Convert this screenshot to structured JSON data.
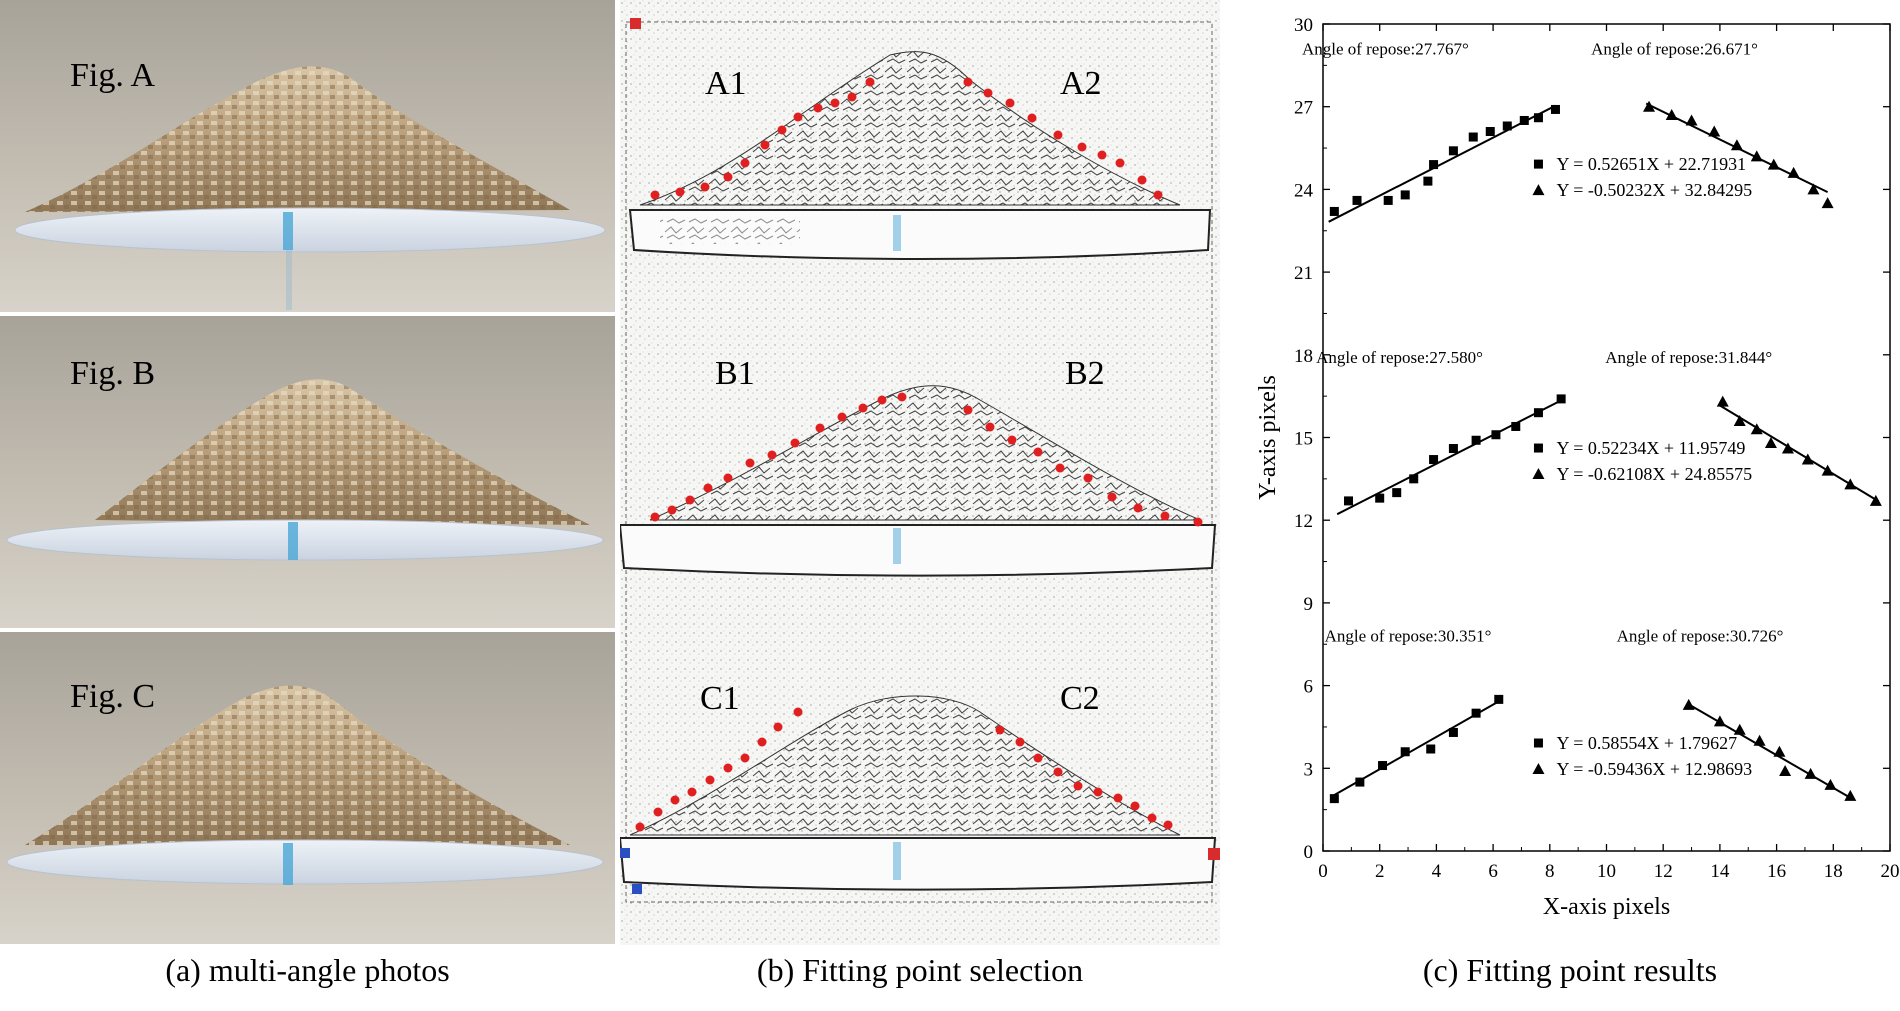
{
  "panel_a": {
    "labels": [
      "Fig. A",
      "Fig. B",
      "Fig. C"
    ],
    "caption": "(a) multi-angle photos"
  },
  "panel_b": {
    "labels": [
      [
        "A1",
        "A2"
      ],
      [
        "B1",
        "B2"
      ],
      [
        "C1",
        "C2"
      ]
    ],
    "caption": "(b) Fitting point selection"
  },
  "panel_c": {
    "caption": "(c) Fitting point results"
  },
  "colors": {
    "point": "#e02020",
    "marker_red": "#d92b2b",
    "marker_blue": "#2a4fc2",
    "tray_blue": "#4aa6d6"
  },
  "chart_data": {
    "type": "scatter",
    "xlabel": "X-axis pixels",
    "ylabel": "Y-axis pixels",
    "xlim": [
      0,
      20
    ],
    "ylim": [
      0,
      30
    ],
    "xticks": [
      0,
      2,
      4,
      6,
      8,
      10,
      12,
      14,
      16,
      18,
      20
    ],
    "yticks": [
      0,
      3,
      6,
      9,
      12,
      15,
      18,
      21,
      24,
      27,
      30
    ],
    "groups": [
      {
        "left": {
          "angle_label": "Angle of repose:27.767°",
          "marker": "square",
          "equation": "Y = 0.52651X + 22.71931",
          "slope": 0.52651,
          "intercept": 22.71931,
          "fit_x": [
            0.2,
            8.2
          ],
          "x": [
            0.4,
            1.2,
            2.3,
            2.9,
            3.7,
            3.9,
            4.6,
            5.3,
            5.9,
            6.5,
            7.1,
            7.6,
            8.2
          ],
          "y": [
            23.2,
            23.6,
            23.6,
            23.8,
            24.3,
            24.9,
            25.4,
            25.9,
            26.1,
            26.3,
            26.5,
            26.6,
            26.9
          ]
        },
        "right": {
          "angle_label": "Angle of repose:26.671°",
          "marker": "triangle",
          "equation": "Y = -0.50232X + 32.84295",
          "slope": -0.50232,
          "intercept": 32.84295,
          "fit_x": [
            11.4,
            17.8
          ],
          "x": [
            11.5,
            12.3,
            13.0,
            13.8,
            14.6,
            15.3,
            15.9,
            16.6,
            17.3,
            17.8
          ],
          "y": [
            27.0,
            26.7,
            26.5,
            26.1,
            25.6,
            25.2,
            24.9,
            24.6,
            24.0,
            23.5
          ]
        }
      },
      {
        "left": {
          "angle_label": "Angle of repose:27.580°",
          "marker": "square",
          "equation": "Y = 0.52234X + 11.95749",
          "slope": 0.52234,
          "intercept": 11.95749,
          "fit_x": [
            0.5,
            8.5
          ],
          "x": [
            0.9,
            2.0,
            2.6,
            3.2,
            3.9,
            4.6,
            5.4,
            6.1,
            6.8,
            7.6,
            8.4
          ],
          "y": [
            12.7,
            12.8,
            13.0,
            13.5,
            14.2,
            14.6,
            14.9,
            15.1,
            15.4,
            15.9,
            16.4
          ]
        },
        "right": {
          "angle_label": "Angle of repose:31.844°",
          "marker": "triangle",
          "equation": "Y = -0.62108X + 24.85575",
          "slope": -0.62108,
          "intercept": 24.85575,
          "fit_x": [
            14.0,
            19.6
          ],
          "x": [
            14.1,
            14.7,
            15.3,
            15.8,
            16.4,
            17.1,
            17.8,
            18.6,
            19.5
          ],
          "y": [
            16.3,
            15.6,
            15.3,
            14.8,
            14.6,
            14.2,
            13.8,
            13.3,
            12.7
          ]
        }
      },
      {
        "left": {
          "angle_label": "Angle of repose:30.351°",
          "marker": "square",
          "equation": "Y = 0.58554X + 1.79627",
          "slope": 0.58554,
          "intercept": 1.79627,
          "fit_x": [
            0.3,
            6.3
          ],
          "x": [
            0.4,
            1.3,
            2.1,
            2.9,
            3.8,
            4.6,
            5.4,
            6.2
          ],
          "y": [
            1.9,
            2.5,
            3.1,
            3.6,
            3.7,
            4.3,
            5.0,
            5.5
          ]
        },
        "right": {
          "angle_label": "Angle of repose:30.726°",
          "marker": "triangle",
          "equation": "Y = -0.59436X + 12.98693",
          "slope": -0.59436,
          "intercept": 12.98693,
          "fit_x": [
            12.9,
            18.6
          ],
          "x": [
            12.9,
            14.0,
            14.7,
            15.4,
            16.1,
            16.3,
            17.2,
            17.9,
            18.6
          ],
          "y": [
            5.3,
            4.7,
            4.4,
            4.0,
            3.6,
            2.9,
            2.8,
            2.4,
            2.0
          ]
        }
      }
    ]
  }
}
